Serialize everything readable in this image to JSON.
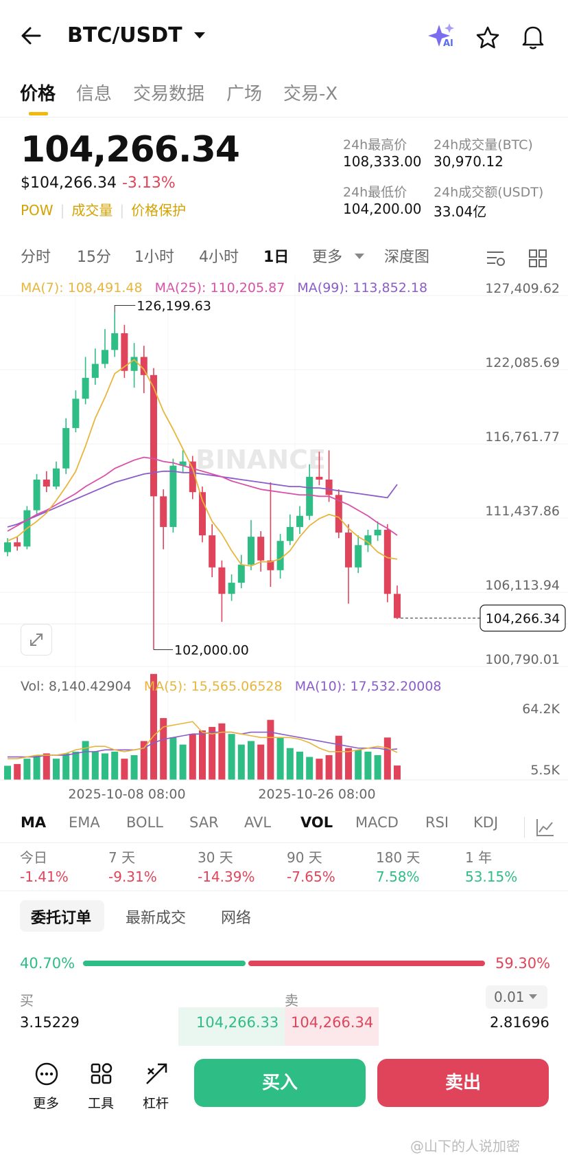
{
  "header": {
    "pair": "BTC/USDT",
    "ai_badge": "AI"
  },
  "tabs": [
    "价格",
    "信息",
    "交易数据",
    "广场",
    "交易-X"
  ],
  "price": {
    "last": "104,266.34",
    "usd": "$104,266.34",
    "change": "-3.13%",
    "tags": [
      "POW",
      "成交量",
      "价格保护"
    ]
  },
  "stats": {
    "high_label": "24h最高价",
    "high_value": "108,333.00",
    "vol_btc_label": "24h成交量(BTC)",
    "vol_btc_value": "30,970.12",
    "low_label": "24h最低价",
    "low_value": "104,200.00",
    "vol_usdt_label": "24h成交额(USDT)",
    "vol_usdt_value": "33.04亿"
  },
  "intervals": [
    "分时",
    "15分",
    "1小时",
    "4小时",
    "1日",
    "更多",
    "深度图"
  ],
  "active_interval": "1日",
  "ma": {
    "ma7": "MA(7): 108,491.48",
    "ma25": "MA(25): 110,205.87",
    "ma99": "MA(99): 113,852.18"
  },
  "vol_ma": {
    "vol": "Vol: 8,140.42904",
    "ma5": "MA(5): 15,565.06528",
    "ma10": "MA(10): 17,532.20008"
  },
  "watermark": "BINANCE",
  "colors": {
    "up": "#2ebd85",
    "down": "#e0445a",
    "ma7": "#e8b53c",
    "ma25": "#d84fa8",
    "ma99": "#8a5cc9",
    "brand": "#f0b90b"
  },
  "chart_data": {
    "type": "candlestick",
    "y_ticks": [
      "127,409.62",
      "122,085.69",
      "116,761.77",
      "111,437.86",
      "106,113.94",
      "100,790.01"
    ],
    "ylim": [
      100790.01,
      127409.62
    ],
    "x_ticks": [
      "2025-10-08 08:00",
      "2025-10-26 08:00"
    ],
    "high_marker": "126,199.63",
    "low_marker": "102,000.00",
    "last_price": "104,266.34",
    "volume_ticks": [
      "64.2K",
      "5.5K"
    ],
    "candles": [
      {
        "o": 109000,
        "c": 109700,
        "h": 110000,
        "l": 108700
      },
      {
        "o": 109700,
        "c": 109400,
        "h": 110100,
        "l": 109100
      },
      {
        "o": 109400,
        "c": 112000,
        "h": 112300,
        "l": 109200
      },
      {
        "o": 112000,
        "c": 114200,
        "h": 114600,
        "l": 111700
      },
      {
        "o": 114200,
        "c": 113700,
        "h": 114800,
        "l": 113300
      },
      {
        "o": 113700,
        "c": 115000,
        "h": 115500,
        "l": 113500
      },
      {
        "o": 115000,
        "c": 117900,
        "h": 118600,
        "l": 114600
      },
      {
        "o": 117900,
        "c": 120000,
        "h": 120600,
        "l": 117600
      },
      {
        "o": 120000,
        "c": 121500,
        "h": 123000,
        "l": 119600
      },
      {
        "o": 121500,
        "c": 122500,
        "h": 123600,
        "l": 121000
      },
      {
        "o": 122500,
        "c": 123500,
        "h": 125000,
        "l": 122200
      },
      {
        "o": 123500,
        "c": 124700,
        "h": 126199.63,
        "l": 123000
      },
      {
        "o": 124700,
        "c": 122000,
        "h": 125300,
        "l": 121500
      },
      {
        "o": 122000,
        "c": 123000,
        "h": 124000,
        "l": 120800
      },
      {
        "o": 123000,
        "c": 121700,
        "h": 123800,
        "l": 120400
      },
      {
        "o": 121700,
        "c": 113000,
        "h": 122200,
        "l": 102000
      },
      {
        "o": 113000,
        "c": 110800,
        "h": 113500,
        "l": 109200
      },
      {
        "o": 110800,
        "c": 115200,
        "h": 115700,
        "l": 110400
      },
      {
        "o": 115200,
        "c": 115500,
        "h": 116300,
        "l": 114700
      },
      {
        "o": 115500,
        "c": 113300,
        "h": 115900,
        "l": 112800
      },
      {
        "o": 113300,
        "c": 110200,
        "h": 113700,
        "l": 109700
      },
      {
        "o": 110200,
        "c": 107900,
        "h": 111000,
        "l": 107200
      },
      {
        "o": 107900,
        "c": 106000,
        "h": 108400,
        "l": 104000
      },
      {
        "o": 106000,
        "c": 106800,
        "h": 107400,
        "l": 105500
      },
      {
        "o": 106800,
        "c": 108100,
        "h": 108800,
        "l": 106400
      },
      {
        "o": 108100,
        "c": 110100,
        "h": 111300,
        "l": 107700
      },
      {
        "o": 110100,
        "c": 108400,
        "h": 110500,
        "l": 107600
      },
      {
        "o": 108400,
        "c": 107700,
        "h": 114000,
        "l": 106500
      },
      {
        "o": 107700,
        "c": 109800,
        "h": 110300,
        "l": 107100
      },
      {
        "o": 109800,
        "c": 110800,
        "h": 111700,
        "l": 109500
      },
      {
        "o": 110800,
        "c": 111600,
        "h": 112300,
        "l": 110300
      },
      {
        "o": 111600,
        "c": 114400,
        "h": 115300,
        "l": 111300
      },
      {
        "o": 114400,
        "c": 114200,
        "h": 116200,
        "l": 113800
      },
      {
        "o": 114200,
        "c": 113100,
        "h": 116300,
        "l": 112600
      },
      {
        "o": 113100,
        "c": 110400,
        "h": 113500,
        "l": 110000
      },
      {
        "o": 110400,
        "c": 107900,
        "h": 111000,
        "l": 105300
      },
      {
        "o": 107900,
        "c": 109500,
        "h": 110200,
        "l": 107500
      },
      {
        "o": 109500,
        "c": 110200,
        "h": 110600,
        "l": 109000
      },
      {
        "o": 110200,
        "c": 110600,
        "h": 111200,
        "l": 109800
      },
      {
        "o": 110600,
        "c": 106000,
        "h": 111000,
        "l": 105400
      },
      {
        "o": 106000,
        "c": 104266.34,
        "h": 106600,
        "l": 104200
      }
    ],
    "ma7": [
      109800,
      110100,
      110700,
      111200,
      111800,
      112700,
      113700,
      114800,
      116600,
      118600,
      120100,
      121800,
      122300,
      122800,
      122100,
      120800,
      119100,
      117800,
      116400,
      115000,
      112700,
      111200,
      110300,
      109100,
      108100,
      108000,
      108300,
      108300,
      108500,
      109100,
      110100,
      110900,
      111400,
      111700,
      111500,
      110700,
      110100,
      109700,
      109000,
      108600,
      108491.48
    ],
    "ma25": [
      110500,
      110900,
      111300,
      111700,
      112000,
      112400,
      112800,
      113200,
      113700,
      114100,
      114500,
      115000,
      115300,
      115600,
      115800,
      115700,
      115500,
      115400,
      115200,
      115000,
      114800,
      114600,
      114400,
      114100,
      113900,
      113700,
      113500,
      113400,
      113300,
      113200,
      113100,
      113100,
      113000,
      113000,
      112700,
      112400,
      112000,
      111600,
      111100,
      110700,
      110205.87
    ],
    "ma99": [
      110800,
      111000,
      111300,
      111600,
      111900,
      112200,
      112500,
      112800,
      113100,
      113400,
      113700,
      114000,
      114200,
      114400,
      114600,
      114700,
      114800,
      114800,
      114700,
      114700,
      114600,
      114500,
      114400,
      114300,
      114200,
      114100,
      114000,
      113900,
      113800,
      113700,
      113700,
      113600,
      113600,
      113500,
      113400,
      113300,
      113200,
      113100,
      113000,
      112900,
      113852.18
    ],
    "volumes": [
      8,
      9,
      12,
      14,
      15,
      12,
      15,
      16,
      22,
      16,
      15,
      16,
      12,
      14,
      22,
      60,
      35,
      24,
      20,
      26,
      28,
      30,
      32,
      26,
      20,
      22,
      20,
      34,
      24,
      18,
      16,
      13,
      12,
      14,
      25,
      18,
      17,
      16,
      14,
      24,
      8.14
    ],
    "vol_ma5": [
      12,
      12,
      13,
      14,
      14,
      14,
      15,
      17,
      18,
      19,
      19,
      17,
      16,
      17,
      18,
      25,
      30,
      31,
      32,
      33,
      27,
      26,
      27,
      27,
      26,
      25,
      24,
      24,
      24,
      24,
      23,
      21,
      18,
      16,
      16,
      16,
      17,
      18,
      19,
      18,
      15.57
    ],
    "vol_ma10": [
      13,
      13,
      13,
      13,
      14,
      14,
      14,
      15,
      16,
      16,
      17,
      17,
      17,
      17,
      18,
      21,
      23,
      24,
      25,
      26,
      26,
      27,
      27,
      27,
      26,
      27,
      27,
      27,
      26,
      25,
      24,
      23,
      22,
      21,
      20,
      19,
      18,
      18,
      18,
      17,
      17.53
    ]
  },
  "indicators": [
    "MA",
    "EMA",
    "BOLL",
    "SAR",
    "AVL",
    "VOL",
    "MACD",
    "RSI",
    "KDJ"
  ],
  "performance": [
    {
      "label": "今日",
      "value": "-1.41%"
    },
    {
      "label": "7 天",
      "value": "-9.31%"
    },
    {
      "label": "30 天",
      "value": "-14.39%"
    },
    {
      "label": "90 天",
      "value": "-7.65%"
    },
    {
      "label": "180 天",
      "value": "7.58%"
    },
    {
      "label": "1 年",
      "value": "53.15%"
    }
  ],
  "orderbook": {
    "tabs": [
      "委托订单",
      "最新成交",
      "网络"
    ],
    "buy_pct": "40.70%",
    "sell_pct": "59.30%",
    "buy_ratio": 0.407,
    "buy_label": "买",
    "sell_label": "卖",
    "precision": "0.01",
    "bid_qty": "3.15229",
    "bid_price": "104,266.33",
    "ask_price": "104,266.34",
    "ask_qty": "2.81696"
  },
  "bottom": {
    "more": "更多",
    "tools": "工具",
    "leverage": "杠杆",
    "buy": "买入",
    "sell": "卖出"
  },
  "footer_watermark": "@山下的人说加密"
}
